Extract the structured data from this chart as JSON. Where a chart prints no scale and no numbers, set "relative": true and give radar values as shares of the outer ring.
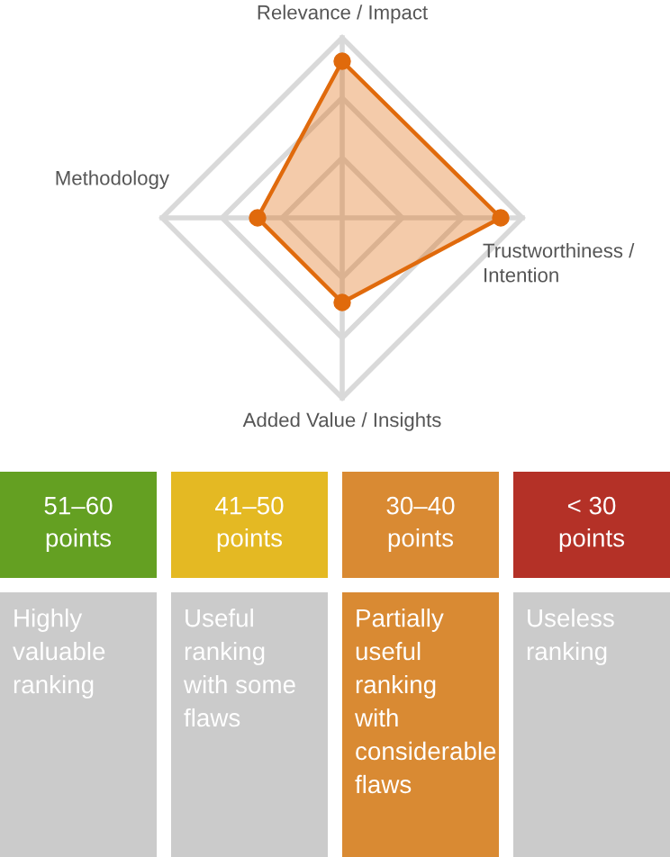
{
  "chart_data": [
    {
      "type": "radar",
      "relative": true,
      "categories": [
        "Relevance / Impact",
        "Trustworthiness / Intention",
        "Added Value / Insights",
        "Methodology"
      ],
      "series": [
        {
          "color": "#e06a0c",
          "values": [
            0.87,
            0.88,
            0.47,
            0.47
          ]
        }
      ],
      "marker": "circle",
      "grid": true
    },
    {
      "type": "other",
      "categories": [
        "51–60 points",
        "41–50 points",
        "30–40 points",
        "< 30 points"
      ],
      "annotations": [
        "Highly valuable ranking",
        "Useful ranking with some flaws",
        "Partially useful ranking with considerable flaws",
        "Useless ranking"
      ],
      "colors": [
        "#64a022",
        "#e4b923",
        "#d98a33",
        "#b43127",
        "#cbcbcb",
        "#cbcbcb",
        "#d98a33",
        "#cbcbcb"
      ]
    }
  ]
}
